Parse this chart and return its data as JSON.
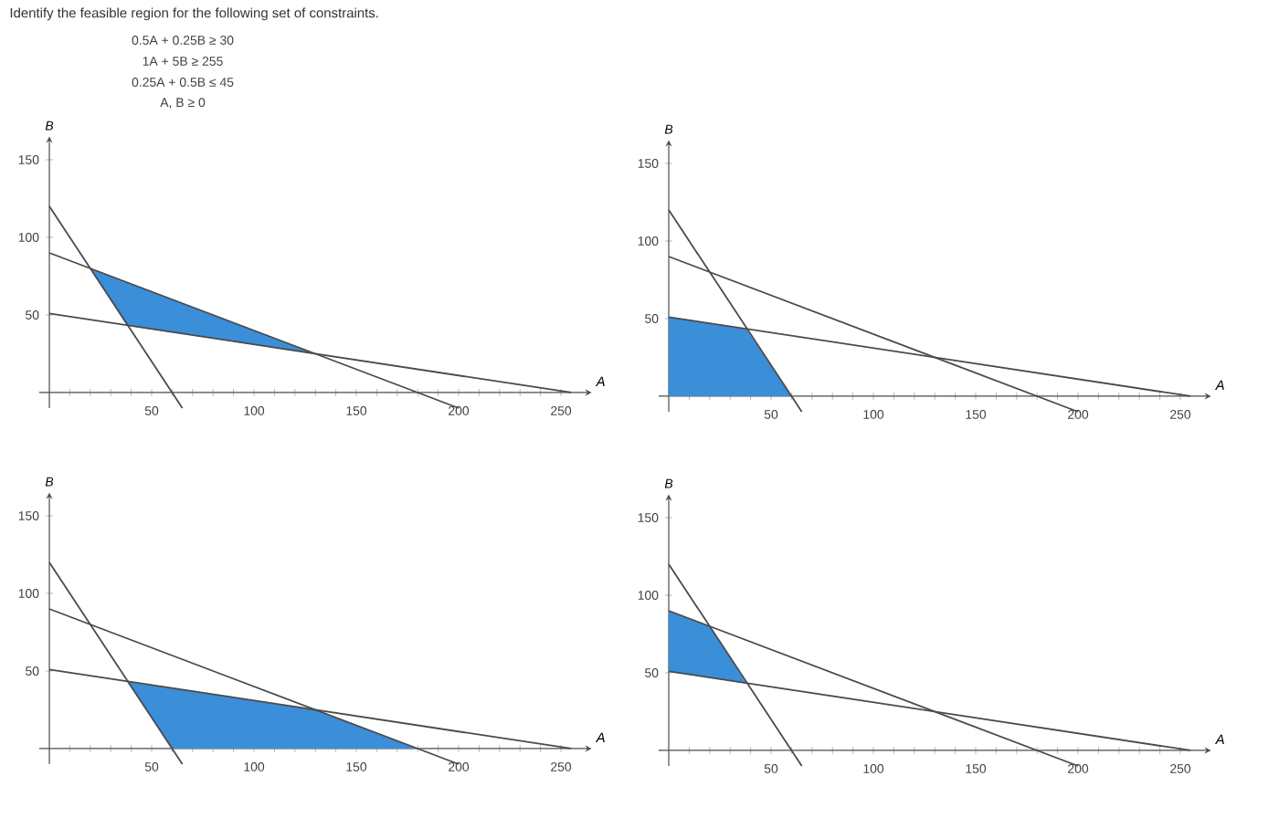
{
  "chart_data": [
    {
      "type": "line",
      "title": "Identify the feasible region for the following set of constraints.",
      "annotations": [
        "0.5A + 0.25B ≥ 30",
        "1A + 5B ≥ 255",
        "0.25A + 0.5B ≤ 45",
        "A, B ≥ 0"
      ],
      "xlabel": "A",
      "ylabel": "B",
      "xlim": [
        -5,
        265
      ],
      "ylim": [
        -10,
        165
      ],
      "xticks": [
        {
          "value": 10,
          "label": null
        },
        {
          "value": 20,
          "label": null
        },
        {
          "value": 30,
          "label": null
        },
        {
          "value": 40,
          "label": null
        },
        50,
        {
          "value": 60,
          "label": null
        },
        {
          "value": 70,
          "label": null
        },
        {
          "value": 80,
          "label": null
        },
        {
          "value": 90,
          "label": null
        },
        100,
        {
          "value": 110,
          "label": null
        },
        {
          "value": 120,
          "label": null
        },
        {
          "value": 130,
          "label": null
        },
        {
          "value": 140,
          "label": null
        },
        150,
        {
          "value": 160,
          "label": null
        },
        {
          "value": 170,
          "label": null
        },
        {
          "value": 180,
          "label": null
        },
        {
          "value": 190,
          "label": null
        },
        200,
        {
          "value": 210,
          "label": null
        },
        {
          "value": 220,
          "label": null
        },
        {
          "value": 230,
          "label": null
        },
        {
          "value": 240,
          "label": null
        },
        250
      ],
      "yticks": [
        50,
        100,
        150
      ],
      "series": [
        {
          "type": "area",
          "color": "#3b8ed8",
          "x": [
            20,
            130,
            38
          ],
          "values": [
            80,
            25,
            43
          ]
        },
        {
          "color": "#4a4a4a",
          "x": [
            0,
            65
          ],
          "values": [
            120,
            -10
          ]
        },
        {
          "color": "#4a4a4a",
          "x": [
            0,
            200
          ],
          "values": [
            90,
            -10
          ]
        },
        {
          "color": "#4a4a4a",
          "x": [
            0,
            255
          ],
          "values": [
            51,
            0
          ]
        }
      ]
    },
    {
      "type": "line",
      "xlabel": "A",
      "ylabel": "B",
      "xlim": [
        -5,
        265
      ],
      "ylim": [
        -10,
        165
      ],
      "xticks": [
        {
          "value": 10,
          "label": null
        },
        {
          "value": 20,
          "label": null
        },
        {
          "value": 30,
          "label": null
        },
        {
          "value": 40,
          "label": null
        },
        50,
        {
          "value": 60,
          "label": null
        },
        {
          "value": 70,
          "label": null
        },
        {
          "value": 80,
          "label": null
        },
        {
          "value": 90,
          "label": null
        },
        100,
        {
          "value": 110,
          "label": null
        },
        {
          "value": 120,
          "label": null
        },
        {
          "value": 130,
          "label": null
        },
        {
          "value": 140,
          "label": null
        },
        150,
        {
          "value": 160,
          "label": null
        },
        {
          "value": 170,
          "label": null
        },
        {
          "value": 180,
          "label": null
        },
        {
          "value": 190,
          "label": null
        },
        200,
        {
          "value": 210,
          "label": null
        },
        {
          "value": 220,
          "label": null
        },
        {
          "value": 230,
          "label": null
        },
        {
          "value": 240,
          "label": null
        },
        250
      ],
      "yticks": [
        50,
        100,
        150
      ],
      "series": [
        {
          "type": "area",
          "color": "#3b8ed8",
          "x": [
            0,
            0,
            38,
            60
          ],
          "values": [
            0,
            51,
            43,
            0
          ]
        },
        {
          "color": "#4a4a4a",
          "x": [
            0,
            65
          ],
          "values": [
            120,
            -10
          ]
        },
        {
          "color": "#4a4a4a",
          "x": [
            0,
            200
          ],
          "values": [
            90,
            -10
          ]
        },
        {
          "color": "#4a4a4a",
          "x": [
            0,
            255
          ],
          "values": [
            51,
            0
          ]
        }
      ]
    },
    {
      "type": "line",
      "xlabel": "A",
      "ylabel": "B",
      "xlim": [
        -5,
        265
      ],
      "ylim": [
        -10,
        165
      ],
      "xticks": [
        {
          "value": 10,
          "label": null
        },
        {
          "value": 20,
          "label": null
        },
        {
          "value": 30,
          "label": null
        },
        {
          "value": 40,
          "label": null
        },
        50,
        {
          "value": 60,
          "label": null
        },
        {
          "value": 70,
          "label": null
        },
        {
          "value": 80,
          "label": null
        },
        {
          "value": 90,
          "label": null
        },
        100,
        {
          "value": 110,
          "label": null
        },
        {
          "value": 120,
          "label": null
        },
        {
          "value": 130,
          "label": null
        },
        {
          "value": 140,
          "label": null
        },
        150,
        {
          "value": 160,
          "label": null
        },
        {
          "value": 170,
          "label": null
        },
        {
          "value": 180,
          "label": null
        },
        {
          "value": 190,
          "label": null
        },
        200,
        {
          "value": 210,
          "label": null
        },
        {
          "value": 220,
          "label": null
        },
        {
          "value": 230,
          "label": null
        },
        {
          "value": 240,
          "label": null
        },
        250
      ],
      "yticks": [
        50,
        100,
        150
      ],
      "series": [
        {
          "type": "area",
          "color": "#3b8ed8",
          "x": [
            38,
            130,
            180,
            60
          ],
          "values": [
            43,
            25,
            0,
            0
          ]
        },
        {
          "color": "#4a4a4a",
          "x": [
            0,
            65
          ],
          "values": [
            120,
            -10
          ]
        },
        {
          "color": "#4a4a4a",
          "x": [
            0,
            200
          ],
          "values": [
            90,
            -10
          ]
        },
        {
          "color": "#4a4a4a",
          "x": [
            0,
            255
          ],
          "values": [
            51,
            0
          ]
        }
      ]
    },
    {
      "type": "line",
      "xlabel": "A",
      "ylabel": "B",
      "xlim": [
        -5,
        265
      ],
      "ylim": [
        -10,
        165
      ],
      "xticks": [
        {
          "value": 10,
          "label": null
        },
        {
          "value": 20,
          "label": null
        },
        {
          "value": 30,
          "label": null
        },
        {
          "value": 40,
          "label": null
        },
        50,
        {
          "value": 60,
          "label": null
        },
        {
          "value": 70,
          "label": null
        },
        {
          "value": 80,
          "label": null
        },
        {
          "value": 90,
          "label": null
        },
        100,
        {
          "value": 110,
          "label": null
        },
        {
          "value": 120,
          "label": null
        },
        {
          "value": 130,
          "label": null
        },
        {
          "value": 140,
          "label": null
        },
        150,
        {
          "value": 160,
          "label": null
        },
        {
          "value": 170,
          "label": null
        },
        {
          "value": 180,
          "label": null
        },
        {
          "value": 190,
          "label": null
        },
        200,
        {
          "value": 210,
          "label": null
        },
        {
          "value": 220,
          "label": null
        },
        {
          "value": 230,
          "label": null
        },
        {
          "value": 240,
          "label": null
        },
        250
      ],
      "yticks": [
        50,
        100,
        150
      ],
      "series": [
        {
          "type": "area",
          "color": "#3b8ed8",
          "x": [
            0,
            20,
            38,
            0
          ],
          "values": [
            90,
            80,
            43,
            51
          ]
        },
        {
          "color": "#4a4a4a",
          "x": [
            0,
            65
          ],
          "values": [
            120,
            -10
          ]
        },
        {
          "color": "#4a4a4a",
          "x": [
            0,
            200
          ],
          "values": [
            90,
            -10
          ]
        },
        {
          "color": "#4a4a4a",
          "x": [
            0,
            255
          ],
          "values": [
            51,
            0
          ]
        }
      ]
    }
  ]
}
